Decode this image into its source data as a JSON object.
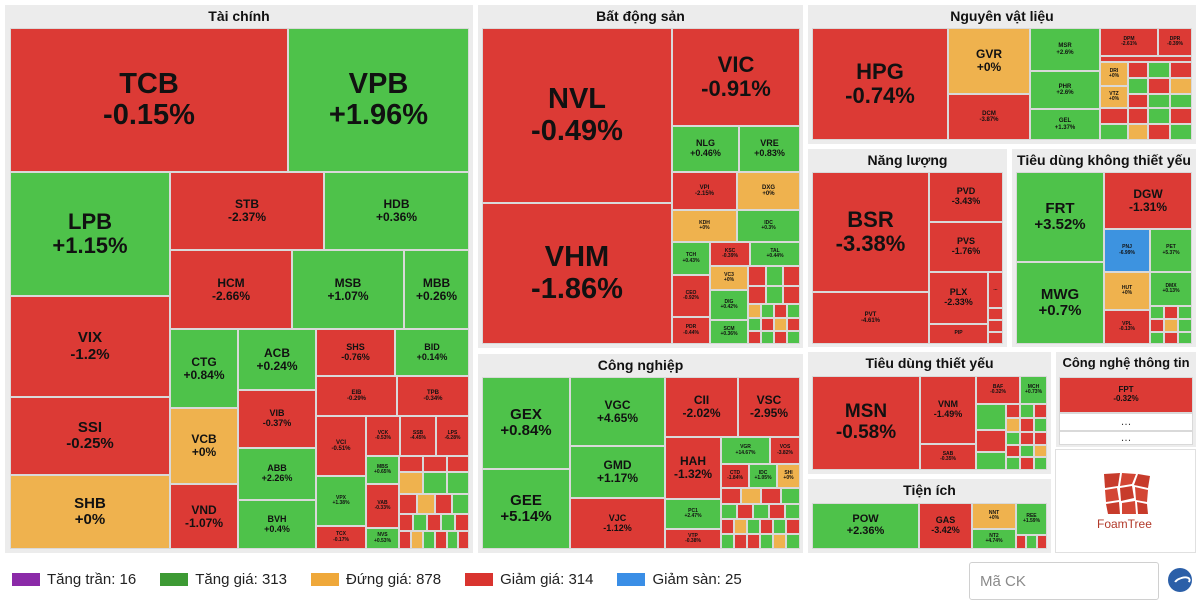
{
  "sectors": [
    {
      "key": "fin",
      "title": "Tài chính",
      "stocks": [
        {
          "ticker": "TCB",
          "change": "-0.15%",
          "color": "red"
        },
        {
          "ticker": "VPB",
          "change": "+1.96%",
          "color": "green"
        },
        {
          "ticker": "LPB",
          "change": "+1.15%",
          "color": "green"
        },
        {
          "ticker": "STB",
          "change": "-2.37%",
          "color": "red"
        },
        {
          "ticker": "HDB",
          "change": "+0.36%",
          "color": "green"
        },
        {
          "ticker": "HCM",
          "change": "-2.66%",
          "color": "red"
        },
        {
          "ticker": "MSB",
          "change": "+1.07%",
          "color": "green"
        },
        {
          "ticker": "MBB",
          "change": "+0.26%",
          "color": "green"
        },
        {
          "ticker": "VIX",
          "change": "-1.2%",
          "color": "red"
        },
        {
          "ticker": "SSI",
          "change": "-0.25%",
          "color": "red"
        },
        {
          "ticker": "SHB",
          "change": "+0%",
          "color": "yellow"
        },
        {
          "ticker": "CTG",
          "change": "+0.84%",
          "color": "green"
        },
        {
          "ticker": "ACB",
          "change": "+0.24%",
          "color": "green"
        },
        {
          "ticker": "SHS",
          "change": "-0.76%",
          "color": "red"
        },
        {
          "ticker": "BID",
          "change": "+0.14%",
          "color": "green"
        },
        {
          "ticker": "VIB",
          "change": "-0.37%",
          "color": "red"
        },
        {
          "ticker": "EIB",
          "change": "-0.29%",
          "color": "red"
        },
        {
          "ticker": "TPB",
          "change": "-0.34%",
          "color": "red"
        },
        {
          "ticker": "VCB",
          "change": "+0%",
          "color": "yellow"
        },
        {
          "ticker": "ABB",
          "change": "+2.26%",
          "color": "green"
        },
        {
          "ticker": "VCI",
          "change": "-0.51%",
          "color": "red"
        },
        {
          "ticker": "VCK",
          "change": "-0.53%",
          "color": "red"
        },
        {
          "ticker": "SSB",
          "change": "-4.45%",
          "color": "red"
        },
        {
          "ticker": "LPS",
          "change": "-6.28%",
          "color": "red"
        },
        {
          "ticker": "MBS",
          "change": "+0.65%",
          "color": "green"
        },
        {
          "ticker": "VND",
          "change": "-1.07%",
          "color": "red"
        },
        {
          "ticker": "BVH",
          "change": "+0.4%",
          "color": "green"
        },
        {
          "ticker": "VPX",
          "change": "+1.38%",
          "color": "green"
        },
        {
          "ticker": "VAB",
          "change": "-0.33%",
          "color": "red"
        },
        {
          "ticker": "TCX",
          "change": "-0.17%",
          "color": "red"
        },
        {
          "ticker": "NVS",
          "change": "+0.53%",
          "color": "green"
        }
      ]
    },
    {
      "key": "bds",
      "title": "Bất động sản",
      "stocks": [
        {
          "ticker": "NVL",
          "change": "-0.49%",
          "color": "red"
        },
        {
          "ticker": "VIC",
          "change": "-0.91%",
          "color": "red"
        },
        {
          "ticker": "NLG",
          "change": "+0.46%",
          "color": "green"
        },
        {
          "ticker": "VRE",
          "change": "+0.83%",
          "color": "green"
        },
        {
          "ticker": "VPI",
          "change": "-2.15%",
          "color": "red"
        },
        {
          "ticker": "DXG",
          "change": "+0%",
          "color": "yellow"
        },
        {
          "ticker": "KDH",
          "change": "+0%",
          "color": "yellow"
        },
        {
          "ticker": "IDC",
          "change": "+0.3%",
          "color": "green"
        },
        {
          "ticker": "VHM",
          "change": "-1.86%",
          "color": "red"
        },
        {
          "ticker": "TCH",
          "change": "+0.43%",
          "color": "green"
        },
        {
          "ticker": "KSC",
          "change": "-0.39%",
          "color": "red"
        },
        {
          "ticker": "TAL",
          "change": "+0.44%",
          "color": "green"
        },
        {
          "ticker": "VC3",
          "change": "+0%",
          "color": "yellow"
        },
        {
          "ticker": "CEO",
          "change": "-0.92%",
          "color": "red"
        },
        {
          "ticker": "DIG",
          "change": "+0.42%",
          "color": "green"
        },
        {
          "ticker": "PDR",
          "change": "-0.44%",
          "color": "red"
        },
        {
          "ticker": "SCM",
          "change": "+0.36%",
          "color": "green"
        }
      ]
    },
    {
      "key": "cn",
      "title": "Công nghiệp",
      "stocks": [
        {
          "ticker": "GEX",
          "change": "+0.84%",
          "color": "green"
        },
        {
          "ticker": "VGC",
          "change": "+4.65%",
          "color": "green"
        },
        {
          "ticker": "CII",
          "change": "-2.02%",
          "color": "red"
        },
        {
          "ticker": "VSC",
          "change": "-2.95%",
          "color": "red"
        },
        {
          "ticker": "GMD",
          "change": "+1.17%",
          "color": "green"
        },
        {
          "ticker": "HAH",
          "change": "-1.32%",
          "color": "red"
        },
        {
          "ticker": "VGR",
          "change": "+14.67%",
          "color": "green"
        },
        {
          "ticker": "VOS",
          "change": "-3.82%",
          "color": "red"
        },
        {
          "ticker": "CTD",
          "change": "-1.84%",
          "color": "red"
        },
        {
          "ticker": "IDC",
          "change": "+1.05%",
          "color": "green"
        },
        {
          "ticker": "SHI",
          "change": "+0%",
          "color": "yellow"
        },
        {
          "ticker": "GEE",
          "change": "+5.14%",
          "color": "green"
        },
        {
          "ticker": "VJC",
          "change": "-1.12%",
          "color": "red"
        },
        {
          "ticker": "PC1",
          "change": "+2.47%",
          "color": "green"
        },
        {
          "ticker": "VTP",
          "change": "-0.38%",
          "color": "red"
        }
      ]
    },
    {
      "key": "nvl",
      "title": "Nguyên vật liệu",
      "stocks": [
        {
          "ticker": "HPG",
          "change": "-0.74%",
          "color": "red"
        },
        {
          "ticker": "GVR",
          "change": "+0%",
          "color": "yellow"
        },
        {
          "ticker": "MSR",
          "change": "+2.6%",
          "color": "green"
        },
        {
          "ticker": "DPM",
          "change": "-2.61%",
          "color": "red"
        },
        {
          "ticker": "DPR",
          "change": "-0.39%",
          "color": "red"
        },
        {
          "ticker": "PHR",
          "change": "+2.6%",
          "color": "green"
        },
        {
          "ticker": "DCM",
          "change": "-3.87%",
          "color": "red"
        },
        {
          "ticker": "GEL",
          "change": "+1.37%",
          "color": "green"
        },
        {
          "ticker": "DRI",
          "change": "+0%",
          "color": "yellow"
        },
        {
          "ticker": "VTZ",
          "change": "+0%",
          "color": "yellow"
        }
      ]
    },
    {
      "key": "nl",
      "title": "Năng lượng",
      "stocks": [
        {
          "ticker": "BSR",
          "change": "-3.38%",
          "color": "red"
        },
        {
          "ticker": "PVD",
          "change": "-3.43%",
          "color": "red"
        },
        {
          "ticker": "PVS",
          "change": "-1.76%",
          "color": "red"
        },
        {
          "ticker": "PLX",
          "change": "-2.33%",
          "color": "red"
        },
        {
          "ticker": "PVT",
          "change": "-4.61%",
          "color": "red"
        },
        {
          "ticker": "PIP",
          "change": "",
          "color": "red"
        }
      ]
    },
    {
      "key": "tdktty",
      "title": "Tiêu dùng không thiết yếu",
      "stocks": [
        {
          "ticker": "FRT",
          "change": "+3.52%",
          "color": "green"
        },
        {
          "ticker": "DGW",
          "change": "-1.31%",
          "color": "red"
        },
        {
          "ticker": "PNJ",
          "change": "-6.99%",
          "color": "blue"
        },
        {
          "ticker": "PET",
          "change": "+5.37%",
          "color": "green"
        },
        {
          "ticker": "HUT",
          "change": "+0%",
          "color": "yellow"
        },
        {
          "ticker": "DMX",
          "change": "+0.13%",
          "color": "green"
        },
        {
          "ticker": "MWG",
          "change": "+0.7%",
          "color": "green"
        },
        {
          "ticker": "VPL",
          "change": "-0.13%",
          "color": "red"
        }
      ]
    },
    {
      "key": "tdty",
      "title": "Tiêu dùng thiết yếu",
      "stocks": [
        {
          "ticker": "MSN",
          "change": "-0.58%",
          "color": "red"
        },
        {
          "ticker": "VNM",
          "change": "-1.49%",
          "color": "red"
        },
        {
          "ticker": "BAF",
          "change": "-0.32%",
          "color": "red"
        },
        {
          "ticker": "MCH",
          "change": "+0.73%",
          "color": "green"
        },
        {
          "ticker": "SAB",
          "change": "-0.35%",
          "color": "red"
        }
      ]
    },
    {
      "key": "ti",
      "title": "Tiện ích",
      "stocks": [
        {
          "ticker": "POW",
          "change": "+2.36%",
          "color": "green"
        },
        {
          "ticker": "GAS",
          "change": "-3.42%",
          "color": "red"
        },
        {
          "ticker": "NNT",
          "change": "+0%",
          "color": "yellow"
        },
        {
          "ticker": "REE",
          "change": "+1.59%",
          "color": "green"
        },
        {
          "ticker": "NT2",
          "change": "+4.74%",
          "color": "green"
        }
      ]
    },
    {
      "key": "cntt",
      "title": "Công nghệ thông tin",
      "stocks": [
        {
          "ticker": "FPT",
          "change": "-0.32%",
          "color": "red"
        }
      ]
    }
  ],
  "ellipsis": "...",
  "ellipsis_mid": "…",
  "foamtree_label": "FoamTree",
  "legend": [
    {
      "label": "Tăng trần: 16",
      "color": "#8b2aa8"
    },
    {
      "label": "Tăng giá: 313",
      "color": "#3d9a34"
    },
    {
      "label": "Đứng giá: 878",
      "color": "#efa83a"
    },
    {
      "label": "Giảm giá: 314",
      "color": "#d9342f"
    },
    {
      "label": "Giảm sàn: 25",
      "color": "#3a8ee6"
    }
  ],
  "search": {
    "placeholder": "Mã CK"
  }
}
